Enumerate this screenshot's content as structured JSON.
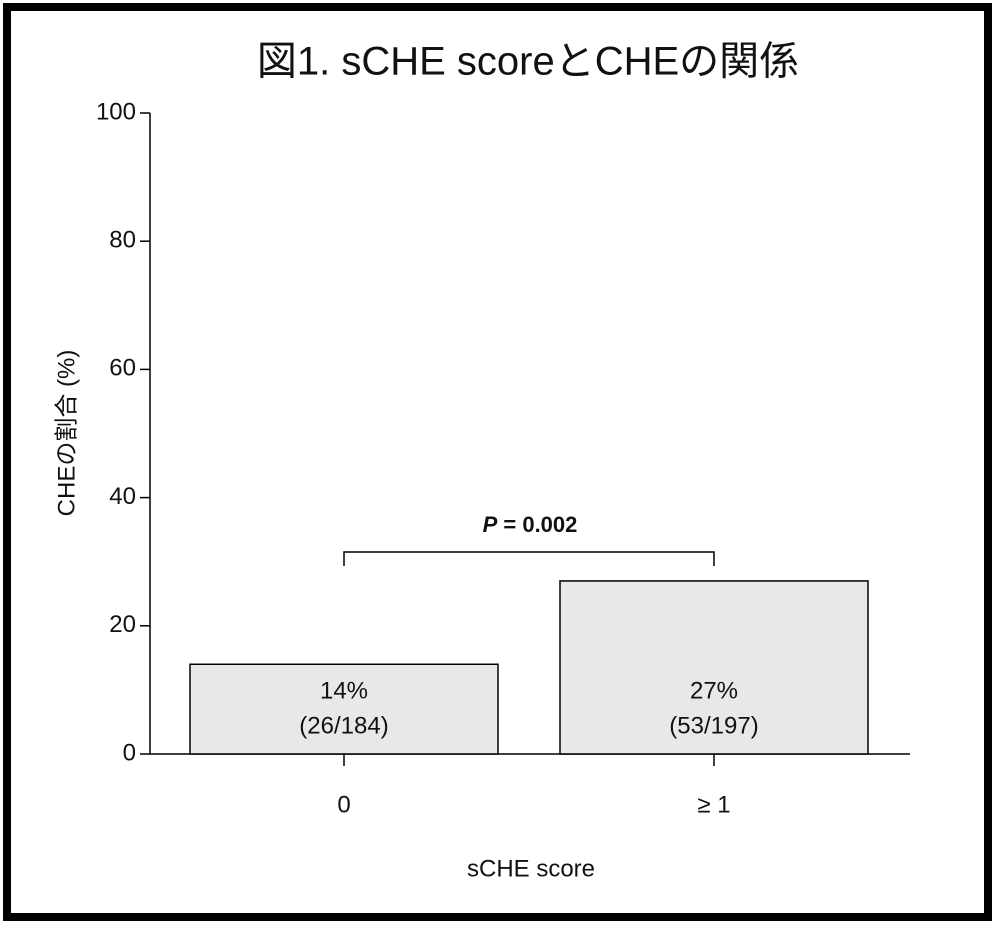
{
  "chart_data": {
    "type": "bar",
    "title": "図1. sCHE scoreとCHEの関係",
    "categories": [
      "0",
      "≥ 1"
    ],
    "values": [
      14,
      27
    ],
    "value_labels": [
      "14%",
      "27%"
    ],
    "count_labels": [
      "(26/184)",
      "(53/197)"
    ],
    "color": "#e8e8e8",
    "x_label": "sCHE score",
    "y_label": "CHEの割合 (%)",
    "annotation": "P = 0.002",
    "ylim": [
      0,
      100
    ],
    "yticks": [
      0,
      20,
      40,
      60,
      80,
      100
    ],
    "grid": false
  }
}
